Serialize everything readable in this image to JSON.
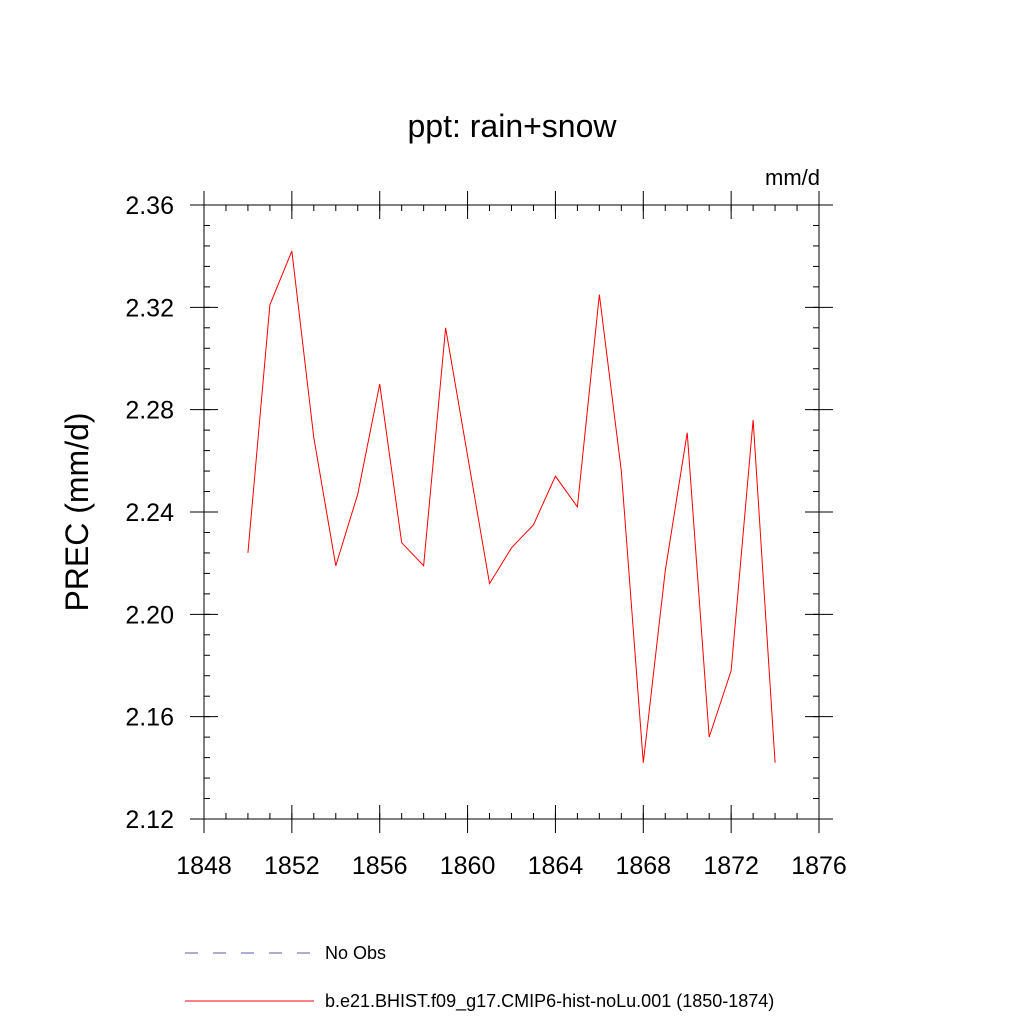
{
  "chart_data": {
    "type": "line",
    "title": "ppt: rain+snow",
    "units_label": "mm/d",
    "xlabel": "",
    "ylabel": "PREC  (mm/d)",
    "xlim": [
      1848,
      1876
    ],
    "ylim": [
      2.12,
      2.36
    ],
    "xticks": [
      1848,
      1852,
      1856,
      1860,
      1864,
      1868,
      1872,
      1876
    ],
    "xtick_labels": [
      "1848",
      "1852",
      "1856",
      "1860",
      "1864",
      "1868",
      "1872",
      "1876"
    ],
    "yticks": [
      2.12,
      2.16,
      2.2,
      2.24,
      2.28,
      2.32,
      2.36
    ],
    "ytick_labels": [
      "2.12",
      "2.16",
      "2.20",
      "2.24",
      "2.28",
      "2.32",
      "2.36"
    ],
    "grid": false,
    "legend_position": "bottom",
    "series": [
      {
        "name": "b.e21.BHIST.f09_g17.CMIP6-hist-noLu.001 (1850-1874)",
        "color": "#ff0000",
        "style": "solid",
        "x": [
          1850,
          1851,
          1852,
          1853,
          1854,
          1855,
          1856,
          1857,
          1858,
          1859,
          1860,
          1861,
          1862,
          1863,
          1864,
          1865,
          1866,
          1867,
          1868,
          1869,
          1870,
          1871,
          1872,
          1873,
          1874
        ],
        "y": [
          2.224,
          2.321,
          2.342,
          2.269,
          2.219,
          2.247,
          2.29,
          2.228,
          2.219,
          2.312,
          2.262,
          2.212,
          2.226,
          2.235,
          2.254,
          2.242,
          2.325,
          2.256,
          2.142,
          2.217,
          2.271,
          2.152,
          2.178,
          2.276,
          2.142
        ]
      },
      {
        "name": "No Obs",
        "color": "#5a5aa8",
        "style": "dashed",
        "x": [],
        "y": []
      }
    ]
  }
}
